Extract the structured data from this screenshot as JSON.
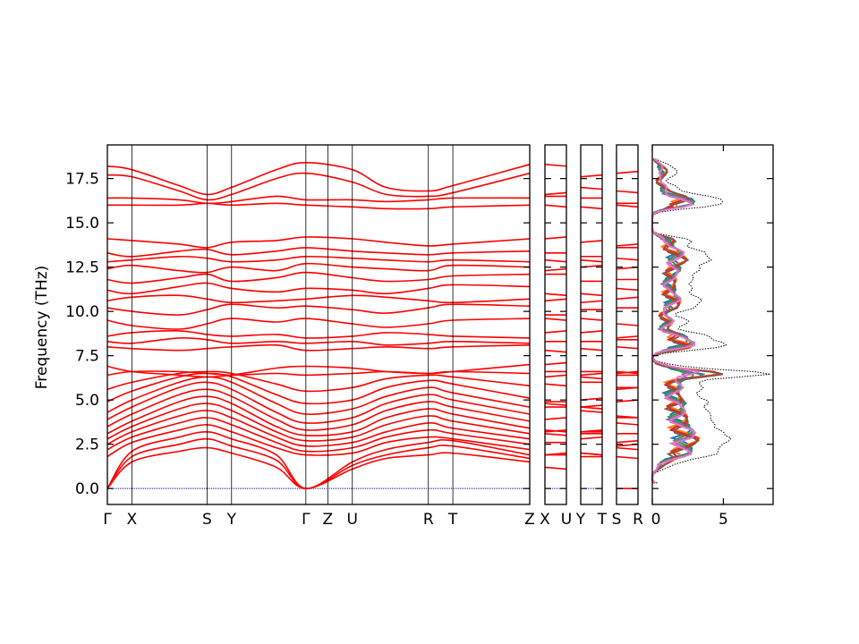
{
  "chart_data": {
    "type": "line",
    "title": "",
    "ylabel": "Frequency (THz)",
    "ylim": [
      -0.9,
      19.4
    ],
    "yticks": [
      0.0,
      2.5,
      5.0,
      7.5,
      10.0,
      12.5,
      15.0,
      17.5
    ],
    "ytick_labels": [
      "0.0",
      "2.5",
      "5.0",
      "7.5",
      "10.0",
      "12.5",
      "15.0",
      "17.5"
    ],
    "band_color": "#ff0000",
    "zero_line_color": "#0000aa",
    "panels": [
      {
        "name": "band-panel-main",
        "x_range": [
          0,
          1
        ],
        "segments": [
          [
            0,
            0.47
          ],
          [
            0.47,
            1
          ]
        ],
        "xticks": [
          {
            "label": "Γ",
            "pos": 0.0
          },
          {
            "label": "X",
            "pos": 0.058
          },
          {
            "label": "S",
            "pos": 0.236
          },
          {
            "label": "Y",
            "pos": 0.294
          },
          {
            "label": "Γ",
            "pos": 0.47
          },
          {
            "label": "Z",
            "pos": 0.522
          },
          {
            "label": "U",
            "pos": 0.58
          },
          {
            "label": "R",
            "pos": 0.76
          },
          {
            "label": "T",
            "pos": 0.818
          },
          {
            "label": "Z",
            "pos": 1.0
          }
        ]
      },
      {
        "name": "band-panel-x-u",
        "x_range": [
          0,
          1
        ],
        "segments": [
          [
            0,
            1
          ]
        ],
        "xticks": [
          {
            "label": "X",
            "pos": 0.0
          },
          {
            "label": "U",
            "pos": 1.0
          }
        ]
      },
      {
        "name": "band-panel-y-t",
        "x_range": [
          0,
          1
        ],
        "segments": [
          [
            0,
            1
          ]
        ],
        "xticks": [
          {
            "label": "Y",
            "pos": 0.0
          },
          {
            "label": "T",
            "pos": 1.0
          }
        ]
      },
      {
        "name": "band-panel-s-r",
        "x_range": [
          0,
          1
        ],
        "segments": [
          [
            0,
            1
          ]
        ],
        "xticks": [
          {
            "label": "S",
            "pos": 0.0
          },
          {
            "label": "R",
            "pos": 1.0
          }
        ]
      }
    ],
    "bands": [
      [
        0.0,
        1.5,
        2.1,
        2.3,
        2.0,
        1.2,
        0.0,
        1.1,
        1.7,
        1.9,
        2.0,
        1.5
      ],
      [
        0.0,
        1.8,
        2.5,
        2.8,
        2.4,
        1.6,
        0.0,
        1.3,
        1.9,
        2.3,
        2.4,
        1.7
      ],
      [
        0.0,
        2.1,
        2.9,
        3.2,
        2.8,
        1.9,
        0.0,
        1.5,
        2.2,
        2.6,
        2.7,
        1.9
      ],
      [
        1.8,
        2.6,
        3.3,
        3.6,
        3.2,
        2.3,
        1.9,
        2.0,
        2.6,
        2.9,
        2.8,
        2.2
      ],
      [
        2.2,
        2.9,
        3.7,
        4.0,
        3.6,
        2.6,
        2.1,
        2.3,
        2.9,
        3.3,
        3.1,
        2.5
      ],
      [
        2.5,
        3.2,
        4.1,
        4.4,
        4.0,
        2.9,
        2.4,
        2.6,
        3.2,
        3.7,
        3.4,
        2.8
      ],
      [
        2.8,
        3.5,
        4.5,
        4.8,
        4.4,
        3.2,
        2.7,
        2.9,
        3.6,
        4.1,
        3.8,
        3.1
      ],
      [
        3.1,
        3.8,
        4.9,
        5.2,
        4.8,
        3.5,
        3.0,
        3.2,
        4.0,
        4.5,
        4.2,
        3.4
      ],
      [
        3.5,
        4.2,
        5.3,
        5.6,
        5.2,
        3.9,
        3.3,
        3.6,
        4.4,
        4.9,
        4.6,
        3.8
      ],
      [
        3.9,
        4.6,
        5.7,
        6.0,
        5.6,
        4.3,
        3.7,
        4.0,
        4.8,
        5.3,
        5.0,
        4.2
      ],
      [
        4.3,
        5.0,
        6.0,
        6.3,
        6.0,
        4.8,
        4.2,
        4.5,
        5.2,
        5.7,
        5.4,
        4.6
      ],
      [
        4.9,
        5.5,
        6.3,
        6.5,
        6.3,
        5.3,
        4.8,
        5.0,
        5.7,
        6.1,
        5.9,
        5.1
      ],
      [
        5.6,
        6.0,
        6.5,
        6.6,
        6.5,
        5.9,
        5.5,
        5.7,
        6.2,
        6.4,
        6.3,
        5.8
      ],
      [
        6.4,
        6.6,
        6.6,
        6.5,
        6.4,
        6.5,
        6.4,
        6.5,
        6.6,
        6.5,
        6.6,
        6.5
      ],
      [
        6.9,
        6.6,
        6.4,
        6.3,
        6.4,
        6.8,
        6.9,
        6.8,
        6.6,
        6.5,
        6.6,
        7.0
      ],
      [
        8.0,
        7.9,
        7.8,
        7.9,
        8.0,
        8.1,
        7.8,
        7.9,
        8.0,
        7.9,
        8.0,
        8.1
      ],
      [
        8.3,
        8.2,
        8.5,
        8.4,
        8.2,
        8.3,
        8.2,
        8.3,
        8.1,
        8.2,
        8.3,
        8.2
      ],
      [
        8.6,
        8.8,
        8.9,
        8.7,
        8.6,
        8.7,
        8.5,
        8.6,
        8.8,
        8.7,
        8.6,
        8.5
      ],
      [
        9.5,
        9.2,
        9.0,
        9.3,
        9.6,
        9.4,
        9.6,
        9.3,
        9.1,
        9.3,
        9.5,
        9.6
      ],
      [
        10.2,
        10.0,
        9.8,
        10.1,
        10.4,
        10.2,
        10.3,
        10.1,
        9.9,
        10.2,
        10.4,
        10.3
      ],
      [
        10.6,
        10.8,
        10.9,
        10.7,
        10.5,
        10.6,
        10.7,
        10.9,
        10.8,
        10.6,
        10.5,
        10.7
      ],
      [
        11.2,
        11.0,
        11.4,
        11.6,
        11.3,
        11.1,
        11.3,
        11.2,
        11.0,
        11.3,
        11.5,
        11.4
      ],
      [
        11.8,
        11.6,
        11.9,
        12.1,
        11.7,
        11.9,
        12.2,
        11.9,
        11.7,
        11.8,
        12.0,
        12.1
      ],
      [
        12.4,
        12.6,
        12.3,
        12.2,
        12.5,
        12.3,
        12.7,
        12.5,
        12.4,
        12.3,
        12.6,
        12.5
      ],
      [
        12.8,
        12.9,
        13.1,
        13.0,
        12.8,
        12.9,
        13.1,
        13.0,
        12.9,
        12.8,
        12.9,
        12.8
      ],
      [
        13.3,
        13.1,
        13.4,
        13.5,
        13.2,
        13.4,
        13.6,
        13.4,
        13.3,
        13.2,
        13.3,
        13.4
      ],
      [
        14.1,
        14.0,
        13.8,
        13.6,
        13.9,
        14.0,
        14.2,
        14.1,
        13.9,
        13.7,
        13.8,
        14.1
      ],
      [
        16.0,
        16.0,
        16.0,
        16.1,
        16.0,
        16.1,
        16.0,
        15.9,
        15.8,
        15.8,
        15.9,
        16.0
      ],
      [
        16.4,
        16.4,
        16.3,
        16.1,
        16.2,
        16.5,
        16.3,
        16.3,
        16.2,
        16.3,
        16.4,
        16.4
      ],
      [
        17.7,
        17.6,
        16.8,
        16.3,
        16.6,
        17.5,
        17.8,
        17.3,
        16.6,
        16.5,
        16.7,
        17.8
      ],
      [
        18.2,
        18.0,
        17.1,
        16.6,
        17.0,
        18.0,
        18.4,
        18.0,
        17.0,
        16.8,
        17.1,
        18.3
      ]
    ],
    "band_x": [
      0.0,
      0.058,
      0.17,
      0.236,
      0.294,
      0.4,
      0.47,
      0.58,
      0.66,
      0.76,
      0.818,
      1.0
    ],
    "dos": {
      "xlim": [
        0,
        8.5
      ],
      "xticks": [
        0,
        5
      ],
      "xtick_labels": [
        "0",
        "5"
      ],
      "total_style": "black-dotted",
      "series_colors": [
        "#1f77b4",
        "#ff7f0e",
        "#2ca02c",
        "#d62728",
        "#9467bd",
        "#8c564b",
        "#e377c2"
      ]
    }
  }
}
